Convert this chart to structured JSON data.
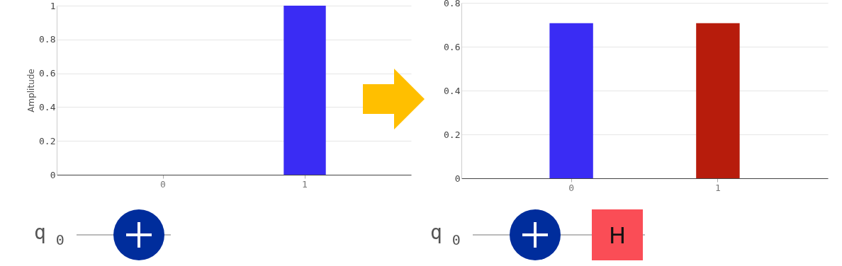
{
  "chart_data": [
    {
      "type": "bar",
      "ylabel": "Amplitude",
      "categories": [
        "0",
        "1"
      ],
      "values": [
        0,
        1
      ],
      "colors": [
        "#3a2cf4",
        "#3a2cf4"
      ],
      "ylim": [
        0,
        1
      ],
      "yticks": [
        0,
        0.2,
        0.4,
        0.6,
        0.8,
        1
      ],
      "grid": "y",
      "legend": false,
      "annotations": [
        "q$_{0}$"
      ]
    },
    {
      "type": "bar",
      "categories": [
        "0",
        "1"
      ],
      "values": [
        0.707,
        0.707
      ],
      "colors": [
        "#3a2cf4",
        "#b71c0c"
      ],
      "ylim": [
        0,
        0.8
      ],
      "yticks": [
        0,
        0.2,
        0.4,
        0.6,
        0.8
      ],
      "grid": "y",
      "legend": false,
      "annotations": [
        "q$_{0}$",
        "H"
      ]
    }
  ]
}
